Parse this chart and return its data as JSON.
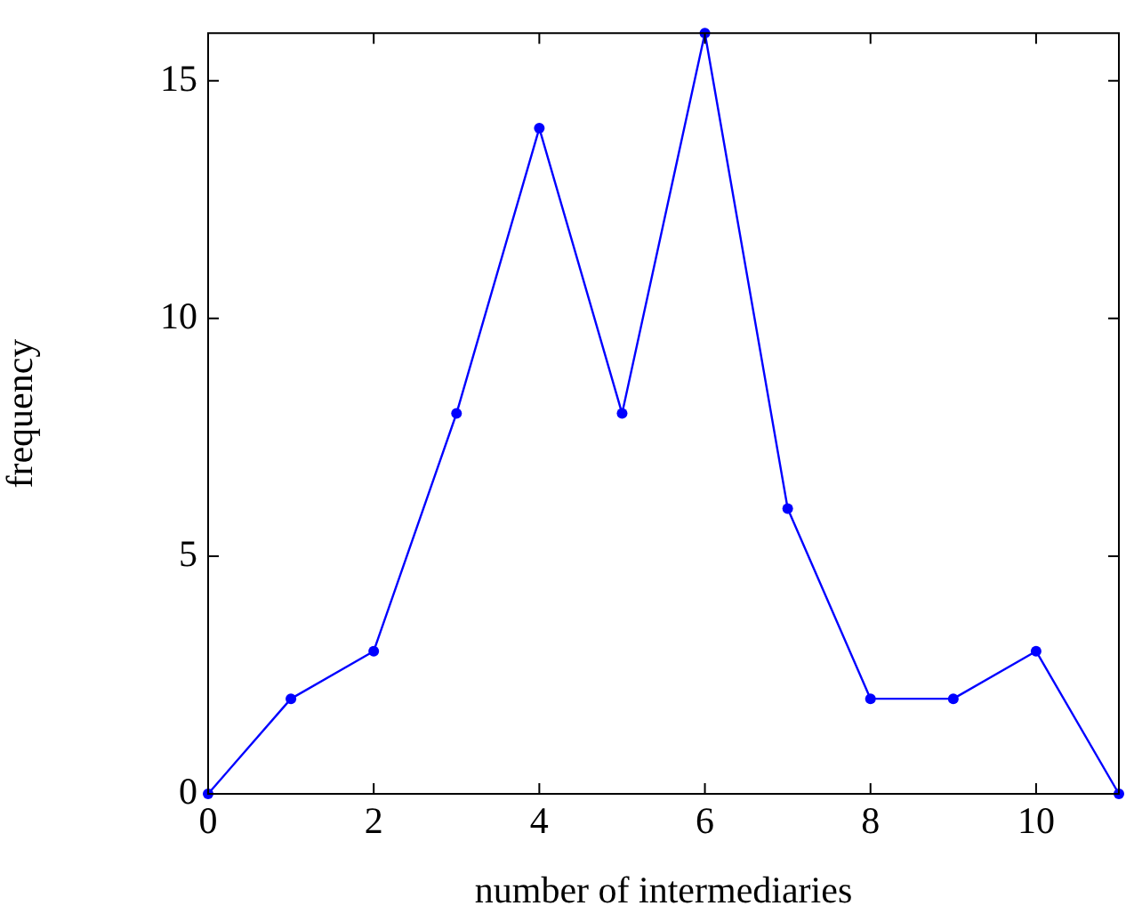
{
  "chart_data": {
    "type": "line",
    "xlabel": "number of intermediaries",
    "ylabel": "frequency",
    "x": [
      0,
      1,
      2,
      3,
      4,
      5,
      6,
      7,
      8,
      9,
      10,
      11
    ],
    "series": [
      {
        "color": "#0000ff",
        "values": [
          0,
          2,
          3,
          8,
          14,
          8,
          16,
          6,
          2,
          2,
          3,
          0
        ]
      }
    ],
    "xlim": [
      0,
      11
    ],
    "ylim": [
      0,
      16
    ],
    "xticks": [
      0,
      2,
      4,
      6,
      8,
      10
    ],
    "yticks": [
      0,
      5,
      10,
      15
    ],
    "grid": false,
    "legend": false,
    "marker": "circle",
    "line_style": "solid"
  }
}
